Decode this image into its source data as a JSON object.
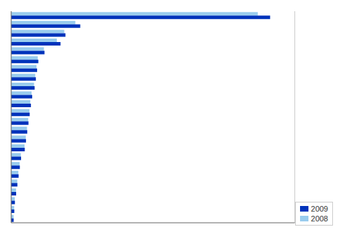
{
  "chart_data": {
    "type": "bar",
    "orientation": "horizontal",
    "categories": [
      null,
      null,
      null,
      null,
      null,
      null,
      null,
      null,
      null,
      null,
      null,
      null,
      null,
      null,
      null,
      null,
      null,
      null,
      null,
      null,
      null,
      null,
      null,
      null
    ],
    "series": [
      {
        "name": "2009",
        "color": "#0033bb",
        "values": [
          210000,
          56000,
          44000,
          40000,
          27000,
          22000,
          21000,
          20000,
          19000,
          17000,
          16000,
          15000,
          14000,
          13000,
          12000,
          11000,
          8000,
          7000,
          6000,
          5000,
          4000,
          3000,
          2500,
          2000
        ]
      },
      {
        "name": "2008",
        "color": "#99ccee",
        "values": [
          200000,
          52000,
          43000,
          37000,
          26500,
          21500,
          20500,
          19500,
          18500,
          16500,
          15500,
          14800,
          13800,
          12800,
          11800,
          10800,
          7800,
          6800,
          5800,
          4900,
          3900,
          2900,
          2400,
          1950
        ]
      }
    ],
    "xlim": [
      0,
      230000
    ],
    "xticks": [
      0,
      11500,
      23000,
      34500,
      46000,
      57500,
      69000,
      80500,
      92000,
      103500,
      115000,
      126500,
      138000,
      149500,
      161000,
      172500,
      184000,
      195500,
      207000,
      218500,
      230000
    ],
    "grid": true,
    "legend": "lower right",
    "tick_labels": false
  }
}
